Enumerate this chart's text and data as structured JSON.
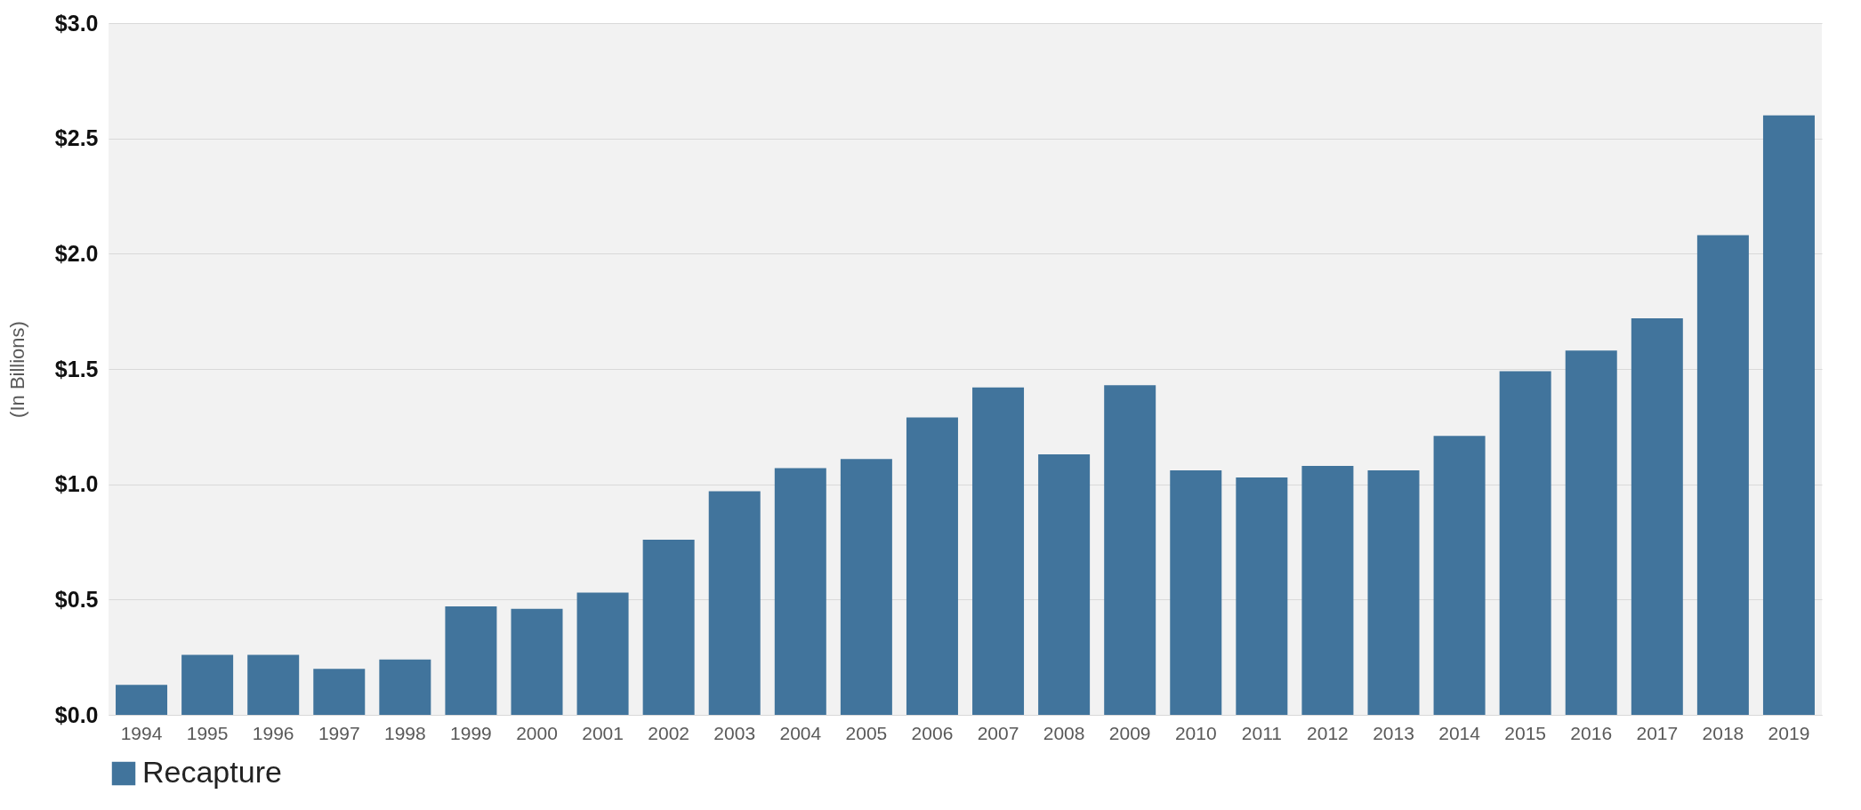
{
  "chart_data": {
    "type": "bar",
    "ylabel": "(In Billions)",
    "categories": [
      "1994",
      "1995",
      "1996",
      "1997",
      "1998",
      "1999",
      "2000",
      "2001",
      "2002",
      "2003",
      "2004",
      "2005",
      "2006",
      "2007",
      "2008",
      "2009",
      "2010",
      "2011",
      "2012",
      "2013",
      "2014",
      "2015",
      "2016",
      "2017",
      "2018",
      "2019"
    ],
    "series": [
      {
        "name": "Recapture",
        "color": "#41749c",
        "values": [
          0.13,
          0.26,
          0.26,
          0.2,
          0.24,
          0.47,
          0.46,
          0.53,
          0.76,
          0.97,
          1.07,
          1.11,
          1.29,
          1.42,
          1.13,
          1.43,
          1.06,
          1.03,
          1.08,
          1.06,
          1.21,
          1.49,
          1.58,
          1.72,
          2.08,
          2.6
        ]
      }
    ],
    "ylim": [
      0,
      3.0
    ],
    "yticks": [
      {
        "value": 0,
        "label": "$0.0"
      },
      {
        "value": 0.5,
        "label": "$0.5"
      },
      {
        "value": 1.0,
        "label": "$1.0"
      },
      {
        "value": 1.5,
        "label": "$1.5"
      },
      {
        "value": 2.0,
        "label": "$2.0"
      },
      {
        "value": 2.5,
        "label": "$2.5"
      },
      {
        "value": 3.0,
        "label": "$3.0"
      }
    ],
    "grid": "y",
    "legend": "bottom"
  }
}
